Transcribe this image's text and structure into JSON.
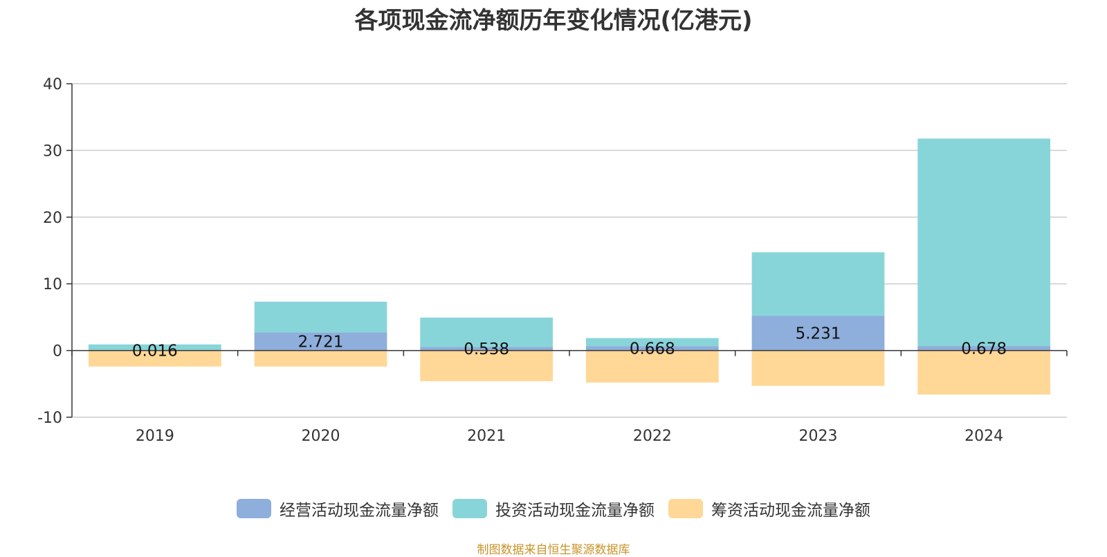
{
  "chart_data": {
    "type": "bar",
    "stacked": true,
    "title": "各项现金流净额历年变化情况(亿港元)",
    "categories": [
      "2019",
      "2020",
      "2021",
      "2022",
      "2023",
      "2024"
    ],
    "ylim": [
      -10,
      40
    ],
    "yticks": [
      40,
      30,
      20,
      10,
      0,
      -10
    ],
    "grid": true,
    "legend_position": "bottom",
    "series": [
      {
        "name": "经营活动现金流量净额",
        "color": "#8eaedb",
        "values": [
          0.016,
          2.721,
          0.538,
          0.668,
          5.231,
          0.678
        ],
        "labels": [
          "0.016",
          "2.721",
          "0.538",
          "0.668",
          "5.231",
          "0.678"
        ]
      },
      {
        "name": "投资活动现金流量净额",
        "color": "#88d5d9",
        "values": [
          0.9,
          4.6,
          4.4,
          1.2,
          9.5,
          31.1
        ]
      },
      {
        "name": "筹资活动现金流量净额",
        "color": "#ffd797",
        "values": [
          -2.4,
          -2.4,
          -4.6,
          -4.8,
          -5.3,
          -6.6
        ]
      }
    ]
  },
  "source_note": "制图数据来自恒生聚源数据库"
}
